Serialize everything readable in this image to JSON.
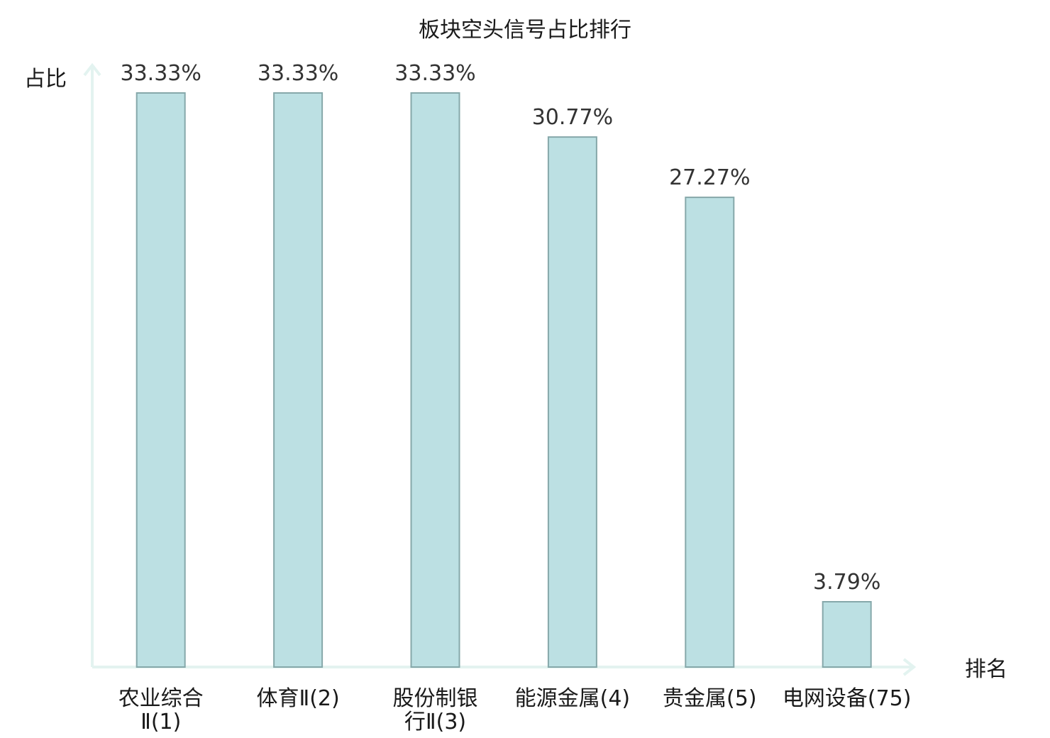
{
  "chart_data": {
    "type": "bar",
    "title": "板块空头信号占比排行",
    "ylabel": "占比",
    "xlabel": "排名",
    "ylim": [
      0,
      33.33
    ],
    "grid": false,
    "categories": [
      [
        "农业综合",
        "Ⅱ(1)"
      ],
      [
        "体育Ⅱ(2)"
      ],
      [
        "股份制银",
        "行Ⅱ(3)"
      ],
      [
        "能源金属(4)"
      ],
      [
        "贵金属(5)"
      ],
      [
        "电网设备(75)"
      ]
    ],
    "values": [
      33.33,
      33.33,
      33.33,
      30.77,
      27.27,
      3.79
    ],
    "value_labels": [
      "33.33%",
      "33.33%",
      "33.33%",
      "30.77%",
      "27.27%",
      "3.79%"
    ],
    "highlight_index": 5,
    "colors": {
      "bar_fill": "#bce0e3",
      "bar_stroke": "#86a8aa",
      "axis": "#e3f3f0",
      "highlight_text": "#e8141c",
      "text": "#1a1a1a",
      "value_text": "#333333"
    }
  }
}
